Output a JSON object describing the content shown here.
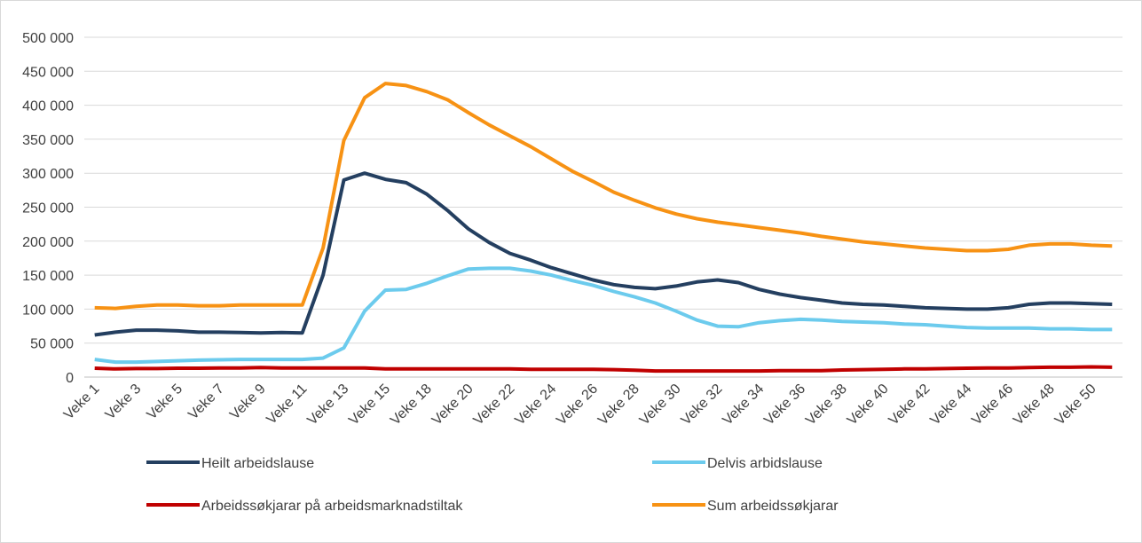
{
  "chart_data": {
    "type": "line",
    "categories": [
      "Veke 1",
      null,
      "Veke 3",
      null,
      "Veke 5",
      null,
      "Veke 7",
      null,
      "Veke 9",
      null,
      "Veke 11",
      null,
      "Veke 13",
      null,
      "Veke 15",
      null,
      "Veke 18",
      null,
      "Veke 20",
      null,
      "Veke 22",
      null,
      "Veke 24",
      null,
      "Veke 26",
      null,
      "Veke 28",
      null,
      "Veke 30",
      null,
      "Veke 32",
      null,
      "Veke 34",
      null,
      "Veke 36",
      null,
      "Veke 38",
      null,
      "Veke 40",
      null,
      "Veke 42",
      null,
      "Veke 44",
      null,
      "Veke 46",
      null,
      "Veke 48",
      null,
      "Veke 50",
      null
    ],
    "series": [
      {
        "name": "Heilt arbeidslause",
        "color": "#243f60",
        "values": [
          62000,
          66000,
          69000,
          69000,
          68000,
          66000,
          66000,
          65500,
          65000,
          65500,
          65000,
          150000,
          290000,
          300000,
          291000,
          286000,
          269000,
          245000,
          218000,
          198000,
          182000,
          172000,
          161000,
          152000,
          143000,
          136000,
          132000,
          130000,
          134000,
          140000,
          143000,
          139000,
          129000,
          122000,
          117000,
          113000,
          109000,
          107000,
          106000,
          104000,
          102000,
          101000,
          100000,
          100000,
          102000,
          107000,
          109000,
          109000,
          108000,
          107000
        ]
      },
      {
        "name": "Delvis arbidslause",
        "color": "#6ccbed",
        "values": [
          26000,
          22000,
          22000,
          23000,
          24000,
          25000,
          25500,
          26000,
          26000,
          26000,
          26000,
          28000,
          43000,
          97000,
          128000,
          129000,
          138000,
          149000,
          159000,
          160000,
          160000,
          156000,
          150000,
          142000,
          135000,
          126000,
          118000,
          109000,
          97000,
          84000,
          75000,
          74000,
          80000,
          83000,
          85000,
          84000,
          82000,
          81000,
          80000,
          78000,
          77000,
          75000,
          73000,
          72000,
          72000,
          72000,
          71000,
          71000,
          70000,
          70000
        ]
      },
      {
        "name": "Arbeidssøkjarar på arbeidsmarknadstiltak",
        "color": "#c00000",
        "values": [
          13000,
          12000,
          12500,
          12500,
          13000,
          13000,
          13500,
          13500,
          14000,
          13500,
          13500,
          13500,
          13500,
          13500,
          12000,
          12000,
          12000,
          12000,
          12000,
          12000,
          12000,
          11500,
          11500,
          11500,
          11500,
          11000,
          10000,
          9000,
          9000,
          9000,
          9000,
          9000,
          9000,
          9500,
          9500,
          9500,
          10500,
          11000,
          11500,
          12000,
          12000,
          12500,
          13000,
          13500,
          13500,
          14000,
          14500,
          14500,
          15000,
          14500
        ]
      },
      {
        "name": "Sum arbeidssøkjarar",
        "color": "#f79214",
        "values": [
          102000,
          101000,
          104000,
          106000,
          106000,
          105000,
          105000,
          106000,
          106000,
          106000,
          106000,
          190000,
          348000,
          411000,
          432000,
          429000,
          420000,
          408000,
          389000,
          371000,
          355000,
          339000,
          321000,
          303000,
          288000,
          272000,
          260000,
          249000,
          240000,
          233000,
          228000,
          224000,
          220000,
          216000,
          212000,
          207000,
          203000,
          199000,
          196000,
          193000,
          190000,
          188000,
          186000,
          186000,
          188000,
          194000,
          196000,
          196000,
          194000,
          193000
        ]
      }
    ],
    "ylim": [
      0,
      500000
    ],
    "yticks": [
      0,
      {
        "value": 50000,
        "label": "50 000"
      },
      {
        "value": 100000,
        "label": "100 000"
      },
      {
        "value": 150000,
        "label": "150 000"
      },
      {
        "value": 200000,
        "label": "200 000"
      },
      {
        "value": 250000,
        "label": "250 000"
      },
      {
        "value": 300000,
        "label": "300 000"
      },
      {
        "value": 350000,
        "label": "350 000"
      },
      {
        "value": 400000,
        "label": "400 000"
      },
      {
        "value": 450000,
        "label": "450 000"
      },
      {
        "value": 500000,
        "label": "500 000"
      }
    ],
    "grid": true
  }
}
